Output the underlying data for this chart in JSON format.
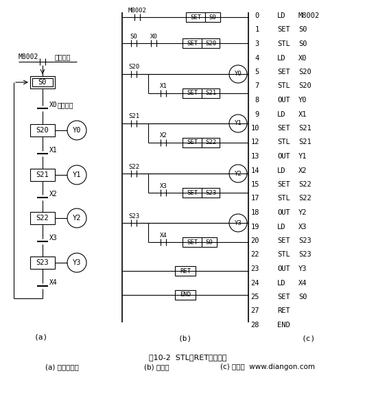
{
  "title": "图10-2  STL、RET指令应用",
  "subtitle_a": "(a) 顺序功能图",
  "subtitle_b": "(b) 梯形图",
  "subtitle_c": "(c) 语句表  www.diangon.com",
  "bg_color": "#ffffff",
  "line_color": "#000000",
  "instructions": [
    [
      "0",
      "LD",
      "M8002"
    ],
    [
      "1",
      "SET",
      "S0"
    ],
    [
      "3",
      "STL",
      "S0"
    ],
    [
      "4",
      "LD",
      "X0"
    ],
    [
      "5",
      "SET",
      "S20"
    ],
    [
      "7",
      "STL",
      "S20"
    ],
    [
      "8",
      "OUT",
      "Y0"
    ],
    [
      "9",
      "LD",
      "X1"
    ],
    [
      "10",
      "SET",
      "S21"
    ],
    [
      "12",
      "STL",
      "S21"
    ],
    [
      "13",
      "OUT",
      "Y1"
    ],
    [
      "14",
      "LD",
      "X2"
    ],
    [
      "15",
      "SET",
      "S22"
    ],
    [
      "17",
      "STL",
      "S22"
    ],
    [
      "18",
      "OUT",
      "Y2"
    ],
    [
      "19",
      "LD",
      "X3"
    ],
    [
      "20",
      "SET",
      "S23"
    ],
    [
      "22",
      "STL",
      "S23"
    ],
    [
      "23",
      "OUT",
      "Y3"
    ],
    [
      "24",
      "LD",
      "X4"
    ],
    [
      "25",
      "SET",
      "S0"
    ],
    [
      "27",
      "RET",
      ""
    ],
    [
      "28",
      "END",
      ""
    ]
  ]
}
